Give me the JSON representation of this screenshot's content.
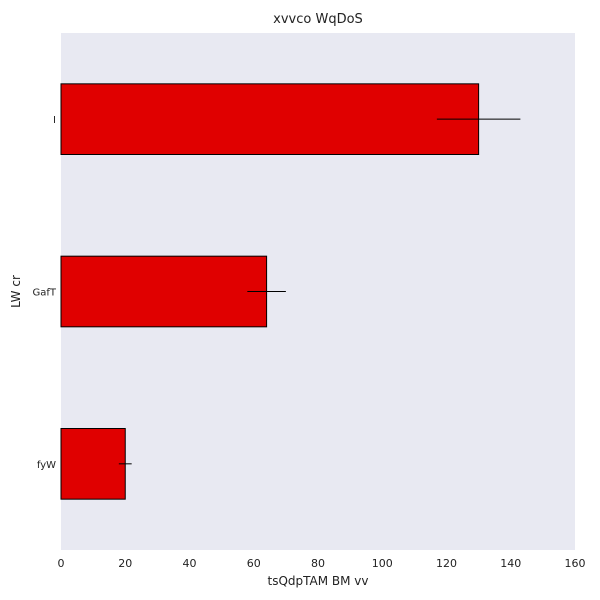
{
  "chart_data": {
    "type": "bar",
    "orientation": "horizontal",
    "title": "xvvco WqDoS",
    "xlabel": "tsQdpTAM BM vv",
    "ylabel": "LW cr",
    "categories": [
      "I",
      "GafT",
      "fyW"
    ],
    "values": [
      130,
      64,
      20
    ],
    "errors": [
      13,
      6,
      2
    ],
    "xlim": [
      0,
      160
    ],
    "xticks": [
      0,
      20,
      40,
      60,
      80,
      100,
      120,
      140,
      160
    ],
    "grid": false,
    "colors": {
      "bar": "#e00000",
      "plot_background": "#e8e9f2",
      "bar_edge": "#000000"
    }
  }
}
